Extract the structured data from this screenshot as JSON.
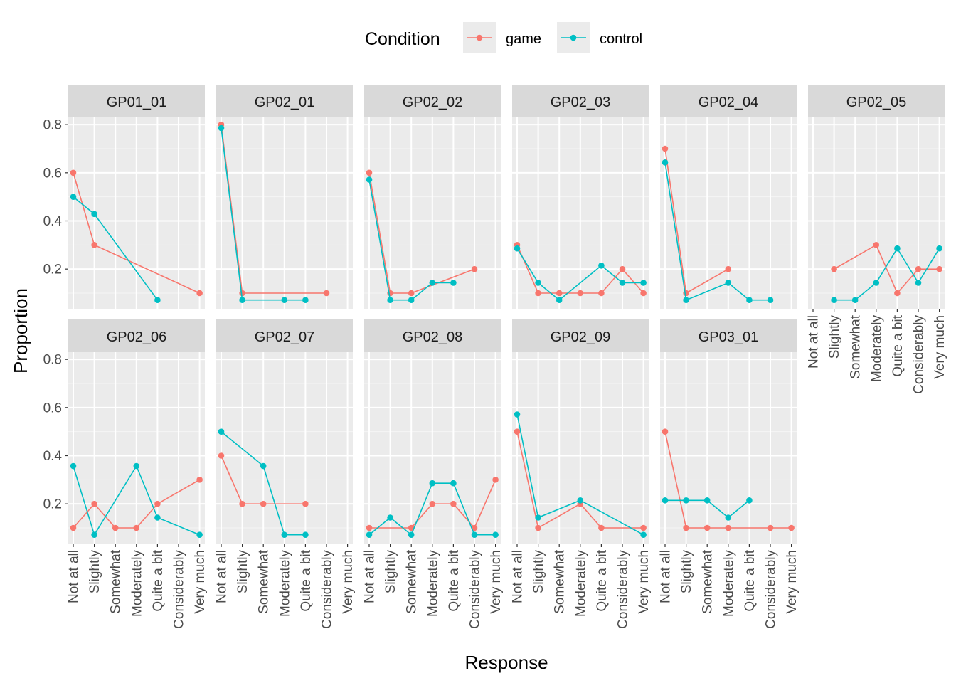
{
  "chart_data": {
    "type": "line",
    "xlabel": "Response",
    "ylabel": "Proportion",
    "legend": {
      "title": "Condition",
      "position": "top"
    },
    "categories": [
      "Not at all",
      "Slightly",
      "Somewhat",
      "Moderately",
      "Quite a bit",
      "Considerably",
      "Very much"
    ],
    "y_ticks": [
      0.2,
      0.4,
      0.6,
      0.8
    ],
    "y_tick_labels": [
      "0.2",
      "0.4",
      "0.6",
      "0.8"
    ],
    "ylim": [
      0.035,
      0.83
    ],
    "grid": true,
    "series_names": [
      "game",
      "control"
    ],
    "colors": {
      "game": "#F8766D",
      "control": "#00BFC4"
    },
    "panels": [
      {
        "title": "GP01_01",
        "game": [
          0.6,
          0.3,
          null,
          null,
          null,
          null,
          0.1
        ],
        "control": [
          0.5,
          0.4286,
          null,
          null,
          0.0714,
          null,
          null
        ]
      },
      {
        "title": "GP02_01",
        "game": [
          0.8,
          0.1,
          null,
          null,
          null,
          0.1,
          null
        ],
        "control": [
          0.7857,
          0.0714,
          null,
          0.0714,
          0.0714,
          null,
          null
        ]
      },
      {
        "title": "GP02_02",
        "game": [
          0.6,
          0.1,
          0.1,
          null,
          null,
          0.2,
          null
        ],
        "control": [
          0.5714,
          0.0714,
          0.0714,
          0.1429,
          0.1429,
          null,
          null
        ]
      },
      {
        "title": "GP02_03",
        "game": [
          0.3,
          0.1,
          0.1,
          0.1,
          0.1,
          0.2,
          0.1
        ],
        "control": [
          0.2857,
          0.1429,
          0.0714,
          null,
          0.2143,
          0.1429,
          0.1429
        ]
      },
      {
        "title": "GP02_04",
        "game": [
          0.7,
          0.1,
          null,
          0.2,
          null,
          null,
          null
        ],
        "control": [
          0.6429,
          0.0714,
          null,
          0.1429,
          0.0714,
          0.0714,
          null
        ]
      },
      {
        "title": "GP02_05",
        "game": [
          null,
          0.2,
          null,
          0.3,
          0.1,
          0.2,
          0.2
        ],
        "control": [
          null,
          0.0714,
          0.0714,
          0.1429,
          0.2857,
          0.1429,
          0.2857
        ]
      },
      {
        "title": "GP02_06",
        "game": [
          0.1,
          0.2,
          0.1,
          0.1,
          0.2,
          null,
          0.3
        ],
        "control": [
          0.3571,
          0.0714,
          null,
          0.3571,
          0.1429,
          null,
          0.0714
        ]
      },
      {
        "title": "GP02_07",
        "game": [
          0.4,
          0.2,
          0.2,
          null,
          0.2,
          null,
          null
        ],
        "control": [
          0.5,
          null,
          0.3571,
          0.0714,
          0.0714,
          null,
          null
        ]
      },
      {
        "title": "GP02_08",
        "game": [
          0.1,
          null,
          0.1,
          0.2,
          0.2,
          0.1,
          0.3
        ],
        "control": [
          0.0714,
          0.1429,
          0.0714,
          0.2857,
          0.2857,
          0.0714,
          0.0714
        ]
      },
      {
        "title": "GP02_09",
        "game": [
          0.5,
          0.1,
          null,
          0.2,
          0.1,
          null,
          0.1
        ],
        "control": [
          0.5714,
          0.1429,
          null,
          0.2143,
          null,
          null,
          0.0714
        ]
      },
      {
        "title": "GP03_01",
        "game": [
          0.5,
          0.1,
          0.1,
          0.1,
          null,
          0.1,
          0.1
        ],
        "control": [
          0.2143,
          0.2143,
          0.2143,
          0.1429,
          0.2143,
          null,
          null
        ]
      }
    ]
  }
}
